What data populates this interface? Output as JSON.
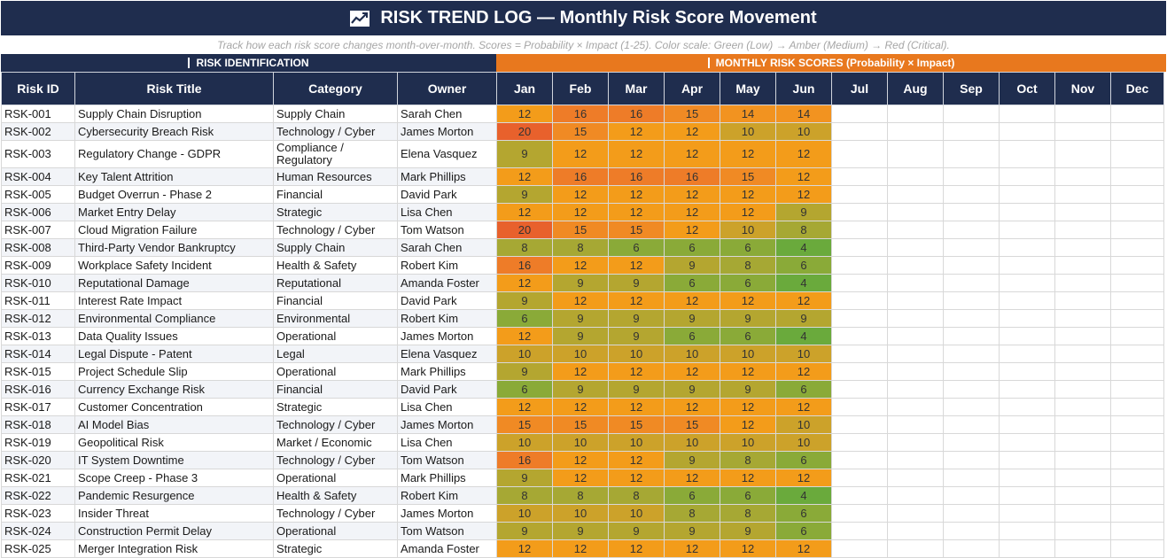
{
  "header": {
    "title": "RISK TREND LOG — Monthly Risk Score Movement",
    "icon": "chart-trend-icon",
    "subtitle": "Track how each risk score changes month-over-month. Scores = Probability × Impact (1-25). Color scale: Green (Low) → Amber (Medium) → Red (Critical)."
  },
  "sections": {
    "identification": "RISK IDENTIFICATION",
    "monthly": "MONTHLY RISK SCORES (Probability × Impact)"
  },
  "columns": {
    "id": "Risk ID",
    "title": "Risk Title",
    "category": "Category",
    "owner": "Owner",
    "months": [
      "Jan",
      "Feb",
      "Mar",
      "Apr",
      "May",
      "Jun",
      "Jul",
      "Aug",
      "Sep",
      "Oct",
      "Nov",
      "Dec"
    ]
  },
  "colors": {
    "header_bg": "#1f2d4e",
    "section_orange": "#e8781e",
    "score_4": "#6aaa3c",
    "score_6": "#8aaa38",
    "score_8": "#a6a834",
    "score_9": "#b4a630",
    "score_10": "#cca22a",
    "score_12": "#f39c1a",
    "score_14": "#f29320",
    "score_15": "#f08a24",
    "score_16": "#ee7c28",
    "score_20": "#e8612c"
  },
  "rows": [
    {
      "id": "RSK-001",
      "title": "Supply Chain Disruption",
      "category": "Supply Chain",
      "owner": "Sarah Chen",
      "scores": [
        12,
        16,
        16,
        15,
        14,
        14
      ]
    },
    {
      "id": "RSK-002",
      "title": "Cybersecurity Breach Risk",
      "category": "Technology / Cyber",
      "owner": "James Morton",
      "scores": [
        20,
        15,
        12,
        12,
        10,
        10
      ]
    },
    {
      "id": "RSK-003",
      "title": "Regulatory Change - GDPR",
      "category": "Compliance / Regulatory",
      "owner": "Elena Vasquez",
      "scores": [
        9,
        12,
        12,
        12,
        12,
        12
      ]
    },
    {
      "id": "RSK-004",
      "title": "Key Talent Attrition",
      "category": "Human Resources",
      "owner": "Mark Phillips",
      "scores": [
        12,
        16,
        16,
        16,
        15,
        12
      ]
    },
    {
      "id": "RSK-005",
      "title": "Budget Overrun - Phase 2",
      "category": "Financial",
      "owner": "David Park",
      "scores": [
        9,
        12,
        12,
        12,
        12,
        12
      ]
    },
    {
      "id": "RSK-006",
      "title": "Market Entry Delay",
      "category": "Strategic",
      "owner": "Lisa Chen",
      "scores": [
        12,
        12,
        12,
        12,
        12,
        9
      ]
    },
    {
      "id": "RSK-007",
      "title": "Cloud Migration Failure",
      "category": "Technology / Cyber",
      "owner": "Tom Watson",
      "scores": [
        20,
        15,
        15,
        12,
        10,
        8
      ]
    },
    {
      "id": "RSK-008",
      "title": "Third-Party Vendor Bankruptcy",
      "category": "Supply Chain",
      "owner": "Sarah Chen",
      "scores": [
        8,
        8,
        6,
        6,
        6,
        4
      ]
    },
    {
      "id": "RSK-009",
      "title": "Workplace Safety Incident",
      "category": "Health & Safety",
      "owner": "Robert Kim",
      "scores": [
        16,
        12,
        12,
        9,
        8,
        6
      ]
    },
    {
      "id": "RSK-010",
      "title": "Reputational Damage",
      "category": "Reputational",
      "owner": "Amanda Foster",
      "scores": [
        12,
        9,
        9,
        6,
        6,
        4
      ]
    },
    {
      "id": "RSK-011",
      "title": "Interest Rate Impact",
      "category": "Financial",
      "owner": "David Park",
      "scores": [
        9,
        12,
        12,
        12,
        12,
        12
      ]
    },
    {
      "id": "RSK-012",
      "title": "Environmental Compliance",
      "category": "Environmental",
      "owner": "Robert Kim",
      "scores": [
        6,
        9,
        9,
        9,
        9,
        9
      ]
    },
    {
      "id": "RSK-013",
      "title": "Data Quality Issues",
      "category": "Operational",
      "owner": "James Morton",
      "scores": [
        12,
        9,
        9,
        6,
        6,
        4
      ]
    },
    {
      "id": "RSK-014",
      "title": "Legal Dispute - Patent",
      "category": "Legal",
      "owner": "Elena Vasquez",
      "scores": [
        10,
        10,
        10,
        10,
        10,
        10
      ]
    },
    {
      "id": "RSK-015",
      "title": "Project Schedule Slip",
      "category": "Operational",
      "owner": "Mark Phillips",
      "scores": [
        9,
        12,
        12,
        12,
        12,
        12
      ]
    },
    {
      "id": "RSK-016",
      "title": "Currency Exchange Risk",
      "category": "Financial",
      "owner": "David Park",
      "scores": [
        6,
        9,
        9,
        9,
        9,
        6
      ]
    },
    {
      "id": "RSK-017",
      "title": "Customer Concentration",
      "category": "Strategic",
      "owner": "Lisa Chen",
      "scores": [
        12,
        12,
        12,
        12,
        12,
        12
      ]
    },
    {
      "id": "RSK-018",
      "title": "AI Model Bias",
      "category": "Technology / Cyber",
      "owner": "James Morton",
      "scores": [
        15,
        15,
        15,
        15,
        12,
        10
      ]
    },
    {
      "id": "RSK-019",
      "title": "Geopolitical Risk",
      "category": "Market / Economic",
      "owner": "Lisa Chen",
      "scores": [
        10,
        10,
        10,
        10,
        10,
        10
      ]
    },
    {
      "id": "RSK-020",
      "title": "IT System Downtime",
      "category": "Technology / Cyber",
      "owner": "Tom Watson",
      "scores": [
        16,
        12,
        12,
        9,
        8,
        6
      ]
    },
    {
      "id": "RSK-021",
      "title": "Scope Creep - Phase 3",
      "category": "Operational",
      "owner": "Mark Phillips",
      "scores": [
        9,
        12,
        12,
        12,
        12,
        12
      ]
    },
    {
      "id": "RSK-022",
      "title": "Pandemic Resurgence",
      "category": "Health & Safety",
      "owner": "Robert Kim",
      "scores": [
        8,
        8,
        8,
        6,
        6,
        4
      ]
    },
    {
      "id": "RSK-023",
      "title": "Insider Threat",
      "category": "Technology / Cyber",
      "owner": "James Morton",
      "scores": [
        10,
        10,
        10,
        8,
        8,
        6
      ]
    },
    {
      "id": "RSK-024",
      "title": "Construction Permit Delay",
      "category": "Operational",
      "owner": "Tom Watson",
      "scores": [
        9,
        9,
        9,
        9,
        9,
        6
      ]
    },
    {
      "id": "RSK-025",
      "title": "Merger Integration Risk",
      "category": "Strategic",
      "owner": "Amanda Foster",
      "scores": [
        12,
        12,
        12,
        12,
        12,
        12
      ]
    }
  ]
}
